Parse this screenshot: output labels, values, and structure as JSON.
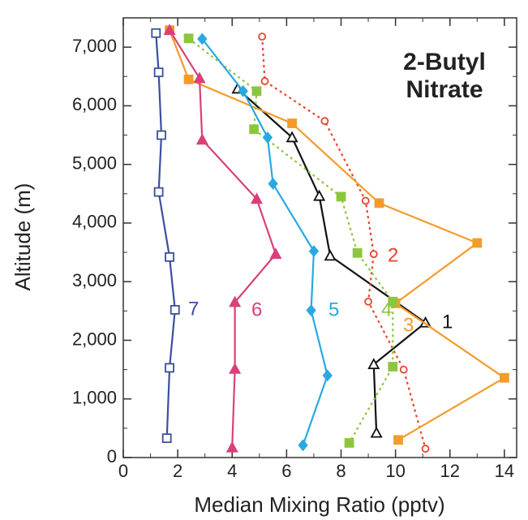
{
  "chart_data": {
    "type": "line",
    "title_lines": [
      "2-Butyl",
      "Nitrate"
    ],
    "x_label": "Median Mixing Ratio (pptv)",
    "y_label": "Altitude (m)",
    "xlim": [
      0,
      14.45
    ],
    "ylim": [
      0,
      7500
    ],
    "xticks": [
      0,
      2,
      4,
      6,
      8,
      10,
      12,
      14
    ],
    "yticks": [
      0,
      {
        "value": 1000,
        "label": "1,000"
      },
      {
        "value": 2000,
        "label": "2,000"
      },
      {
        "value": 3000,
        "label": "3,000"
      },
      {
        "value": 4000,
        "label": "4,000"
      },
      {
        "value": 5000,
        "label": "5,000"
      },
      {
        "value": 6000,
        "label": "6,000"
      },
      {
        "value": 7000,
        "label": "7,000"
      }
    ],
    "grid": false,
    "series": [
      {
        "name": "1",
        "color": "#111111",
        "marker": "triangle-open",
        "dashed": false,
        "x": [
          4.2,
          6.2,
          7.2,
          7.6,
          11.1,
          9.2,
          9.3
        ],
        "values": [
          6290,
          5460,
          4460,
          3440,
          2300,
          1590,
          420
        ]
      },
      {
        "name": "2",
        "color": "#e8442a",
        "marker": "circle-open",
        "dashed": true,
        "x": [
          5.1,
          5.2,
          7.4,
          8.9,
          9.2,
          9.0,
          10.3,
          11.1
        ],
        "values": [
          7180,
          6420,
          5740,
          4380,
          3470,
          2660,
          1500,
          150
        ]
      },
      {
        "name": "3",
        "color": "#f39c2c",
        "marker": "square",
        "dashed": false,
        "x": [
          1.7,
          2.4,
          6.2,
          9.4,
          13.0,
          10.0,
          14.0,
          10.1
        ],
        "values": [
          7290,
          6450,
          5700,
          4340,
          3660,
          2630,
          1360,
          300
        ]
      },
      {
        "name": "4",
        "color": "#8cc63f",
        "marker": "square",
        "dashed": true,
        "x": [
          2.4,
          4.9,
          4.8,
          8.0,
          8.6,
          9.9,
          9.9,
          8.3
        ],
        "values": [
          7150,
          6250,
          5600,
          4450,
          3490,
          2660,
          1550,
          250
        ]
      },
      {
        "name": "5",
        "color": "#2aa8e0",
        "marker": "diamond",
        "dashed": false,
        "x": [
          2.9,
          4.4,
          5.3,
          5.5,
          7.0,
          6.9,
          7.5,
          6.6
        ],
        "values": [
          7140,
          6250,
          5460,
          4670,
          3520,
          2510,
          1400,
          210
        ]
      },
      {
        "name": "6",
        "color": "#d9407a",
        "marker": "triangle",
        "dashed": false,
        "x": [
          1.7,
          2.8,
          2.9,
          4.9,
          5.6,
          4.1,
          4.1,
          4.0
        ],
        "values": [
          7290,
          6470,
          5420,
          4410,
          3470,
          2650,
          1510,
          170
        ]
      },
      {
        "name": "7",
        "color": "#3a4fa0",
        "marker": "square-open",
        "dashed": false,
        "x": [
          1.2,
          1.3,
          1.4,
          1.3,
          1.7,
          1.9,
          1.7,
          1.6
        ],
        "values": [
          7240,
          6570,
          5500,
          4530,
          3420,
          2520,
          1530,
          330
        ]
      }
    ]
  }
}
